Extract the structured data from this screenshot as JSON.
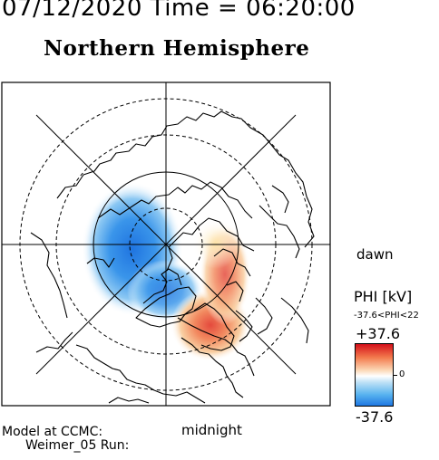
{
  "header": {
    "datetime": "07/12/2020 Time = 06:20:00",
    "hemisphere": "Northern Hemisphere"
  },
  "map": {
    "orientation_labels": {
      "dawn": "dawn",
      "midnight": "midnight",
      "noon": "",
      "dusk": ""
    },
    "background": "#ffffff",
    "line_color": "#000000"
  },
  "colorbar": {
    "title": "PHI [kV]",
    "range_text": "-37.6<PHI<22",
    "max_label": "+37.6",
    "zero_label": "0",
    "min_label": "-37.6",
    "colors": {
      "max": "#d4101a",
      "mid": "#ffffff",
      "min": "#1f78e2"
    }
  },
  "footer": {
    "line1": "Model at CCMC:",
    "line2": "Weimer_05 Run:"
  }
}
